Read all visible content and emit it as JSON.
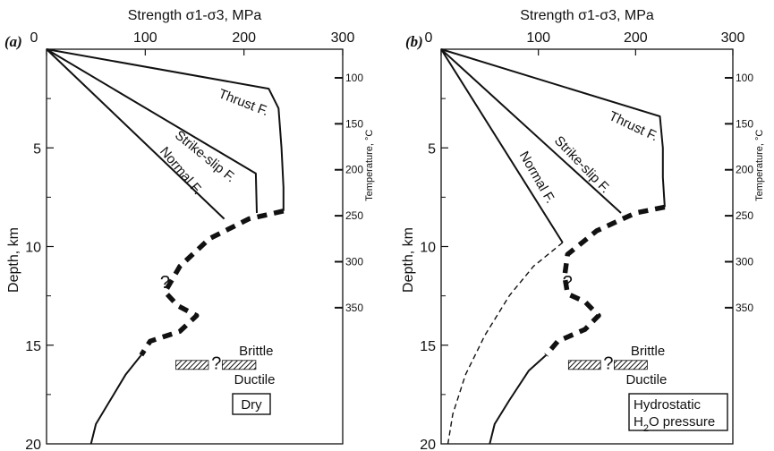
{
  "chart_data": [
    {
      "panel_label": "(a)",
      "type": "line",
      "xlabel": "Strength σ1-σ3, MPa",
      "ylabel": "Depth, km",
      "y2label": "Temperature, °C",
      "xlim": [
        0,
        300
      ],
      "ylim": [
        20,
        0
      ],
      "xticks": [
        0,
        100,
        200,
        300
      ],
      "yticks": [
        5,
        10,
        15,
        20
      ],
      "y2ticks": [
        100,
        150,
        200,
        250,
        300,
        350
      ],
      "series": [
        {
          "name": "Thrust F.",
          "style": "solid",
          "points": [
            [
              0,
              0
            ],
            [
              225,
              2
            ],
            [
              235,
              3
            ],
            [
              238,
              5
            ],
            [
              240,
              7
            ],
            [
              240,
              8.2
            ]
          ]
        },
        {
          "name": "Strike-slip F.",
          "style": "solid",
          "points": [
            [
              0,
              0
            ],
            [
              212,
              6.3
            ],
            [
              213,
              8.3
            ]
          ]
        },
        {
          "name": "Normal F.",
          "style": "solid",
          "points": [
            [
              0,
              0
            ],
            [
              180,
              8.6
            ]
          ]
        },
        {
          "name": "",
          "style": "thick-dashed",
          "points": [
            [
              240,
              8.2
            ],
            [
              205,
              8.6
            ],
            [
              165,
              9.6
            ],
            [
              135,
              11
            ],
            [
              120,
              12.3
            ],
            [
              133,
              13
            ],
            [
              152,
              13.5
            ],
            [
              135,
              14.3
            ],
            [
              105,
              14.8
            ],
            [
              96,
              15.5
            ]
          ]
        },
        {
          "name": "",
          "style": "solid",
          "points": [
            [
              96,
              15.5
            ],
            [
              80,
              16.5
            ],
            [
              62,
              18
            ],
            [
              50,
              19
            ],
            [
              45,
              20
            ]
          ]
        }
      ],
      "question_marks": [
        [
          120,
          11.8
        ],
        [
          172,
          15.9
        ]
      ],
      "transition_labels": [
        "Brittle",
        "Ductile"
      ],
      "box_label": [
        "Dry"
      ]
    },
    {
      "panel_label": "(b)",
      "type": "line",
      "xlabel": "Strength σ1-σ3, MPa",
      "ylabel": "Depth, km",
      "y2label": "Temperature, °C",
      "xlim": [
        0,
        300
      ],
      "ylim": [
        20,
        0
      ],
      "xticks": [
        0,
        100,
        200,
        300
      ],
      "yticks": [
        5,
        10,
        15,
        20
      ],
      "y2ticks": [
        100,
        150,
        200,
        250,
        300,
        350
      ],
      "series": [
        {
          "name": "Thrust F.",
          "style": "solid",
          "points": [
            [
              0,
              0
            ],
            [
              225,
              3.4
            ],
            [
              228,
              5
            ],
            [
              228,
              6.5
            ],
            [
              230,
              8
            ]
          ]
        },
        {
          "name": "Strike-slip F.",
          "style": "solid",
          "points": [
            [
              0,
              0
            ],
            [
              185,
              8.3
            ]
          ]
        },
        {
          "name": "Normal F.",
          "style": "solid",
          "points": [
            [
              0,
              0
            ],
            [
              125,
              9.8
            ]
          ]
        },
        {
          "name": "",
          "style": "thick-dashed",
          "points": [
            [
              230,
              8
            ],
            [
              200,
              8.3
            ],
            [
              160,
              9.2
            ],
            [
              130,
              10.4
            ],
            [
              127,
              11.5
            ],
            [
              130,
              12.4
            ],
            [
              148,
              12.8
            ],
            [
              162,
              13.5
            ],
            [
              148,
              14.2
            ],
            [
              120,
              14.8
            ],
            [
              108,
              15.5
            ]
          ]
        },
        {
          "name": "",
          "style": "thin-dashed",
          "points": [
            [
              125,
              9.8
            ],
            [
              95,
              11
            ],
            [
              70,
              12.5
            ],
            [
              45,
              14.5
            ],
            [
              25,
              16.5
            ],
            [
              12,
              18.5
            ],
            [
              7,
              20
            ]
          ]
        },
        {
          "name": "",
          "style": "solid",
          "points": [
            [
              108,
              15.5
            ],
            [
              90,
              16.3
            ],
            [
              70,
              17.8
            ],
            [
              55,
              19
            ],
            [
              50,
              20
            ]
          ]
        }
      ],
      "question_marks": [
        [
          130,
          11.8
        ],
        [
          172,
          15.9
        ]
      ],
      "transition_labels": [
        "Brittle",
        "Ductile"
      ],
      "box_label": [
        "Hydrostatic",
        "H2O pressure"
      ]
    }
  ]
}
